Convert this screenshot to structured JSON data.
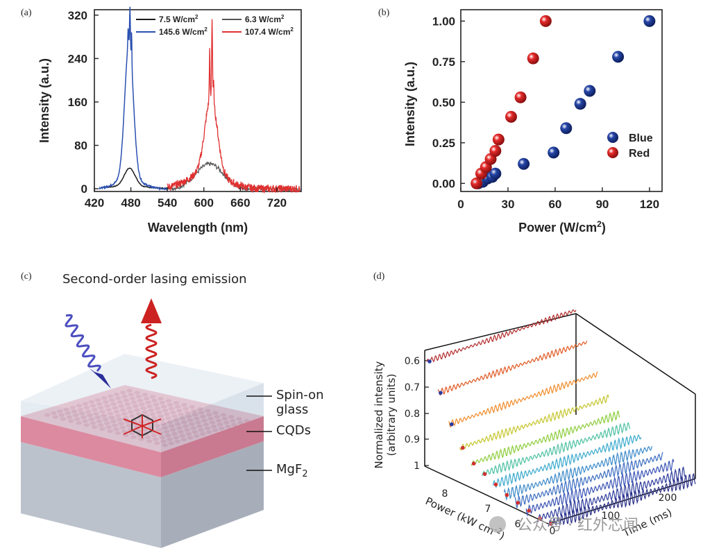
{
  "chart_data": [
    {
      "type": "line",
      "panel": "(a)",
      "xlabel": "Wavelength (nm)",
      "ylabel": "Intensity (a.u.)",
      "xlim": [
        420,
        760
      ],
      "ylim": [
        -5,
        330
      ],
      "xticks": [
        420,
        480,
        540,
        600,
        660,
        720
      ],
      "yticks": [
        0,
        80,
        160,
        240,
        320
      ],
      "series": [
        {
          "name": "7.5 W/cm",
          "sup": "2",
          "color": "#1a1a1a",
          "peak_nm": 478,
          "peak_value": 34
        },
        {
          "name": "145.6 W/cm",
          "sup": "2",
          "color": "#2a4fb0",
          "peak_nm": 478,
          "peak_value": 318
        },
        {
          "name": "6.3 W/cm",
          "sup": "2",
          "color": "#555555",
          "peak_nm": 614,
          "peak_value": 42
        },
        {
          "name": "107.4 W/cm",
          "sup": "2",
          "color": "#e03030",
          "peak_nm": 612,
          "peak_value": 315
        }
      ]
    },
    {
      "type": "scatter",
      "panel": "(b)",
      "xlabel": "Power (W/cm",
      "xlabel_sup": "2",
      "xlabel_end": ")",
      "ylabel": "Intensity (a.u.)",
      "xlim": [
        0,
        128
      ],
      "ylim": [
        -0.05,
        1.07
      ],
      "xticks": [
        0,
        30,
        60,
        90,
        120
      ],
      "yticks": [
        "0.00",
        "0.25",
        "0.50",
        "0.75",
        "1.00"
      ],
      "series": [
        {
          "name": "Blue",
          "color": "#2546a8",
          "x": [
            11,
            14,
            17,
            20,
            22,
            40,
            59,
            67,
            76,
            82,
            100,
            120
          ],
          "y": [
            0.0,
            0.01,
            0.03,
            0.04,
            0.06,
            0.12,
            0.19,
            0.34,
            0.49,
            0.57,
            0.78,
            1.0
          ]
        },
        {
          "name": "Red",
          "color": "#e42a2a",
          "x": [
            10,
            13,
            16,
            19,
            22,
            24,
            32,
            38,
            46,
            54
          ],
          "y": [
            0.0,
            0.06,
            0.1,
            0.15,
            0.2,
            0.27,
            0.41,
            0.53,
            0.77,
            1.0
          ]
        }
      ]
    },
    {
      "type": "line",
      "panel": "(d)",
      "xlabel": "Time (ms)",
      "ylabel": "Power (kW cm",
      "ylabel_sup": "-2",
      "ylabel_end": ")",
      "zlabel": "Normalized intensity",
      "zlabel2": "(arbitrary units)",
      "x_ticks": [
        0,
        100,
        200
      ],
      "y_ticks": [
        6,
        7,
        8
      ],
      "z_ticks": [
        "0.6",
        "0.7",
        "0.8",
        "0.9",
        "1"
      ],
      "series_colors": [
        "#b22a2a",
        "#e0561e",
        "#f08a28",
        "#c4c42a",
        "#8ccc3a",
        "#4cc0a0",
        "#38a8cc",
        "#3a88c8",
        "#3a6cc0",
        "#3852b4",
        "#2e3c9c",
        "#2a3088"
      ],
      "series_z": [
        1.0,
        0.9,
        0.8,
        0.73,
        0.69,
        0.67,
        0.65,
        0.63,
        0.62,
        0.61,
        0.6,
        0.6
      ]
    }
  ],
  "labels": {
    "panel_a": "(a)",
    "panel_b": "(b)",
    "panel_c": "(c)",
    "panel_d": "(d)"
  },
  "diagram": {
    "title": "Second-order lasing emission",
    "layer1a": "Spin-on",
    "layer1b": "glass",
    "layer2": "CQDs",
    "layer3": "MgF",
    "layer3_sub": "2"
  },
  "watermark": "公众号 · 红外芯闻"
}
